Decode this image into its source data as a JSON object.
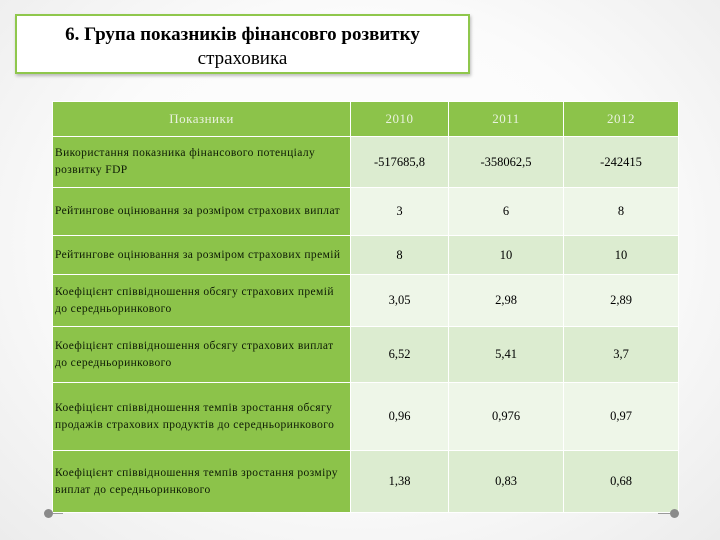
{
  "title": {
    "line1": "6. Група показників фінансовго розвитку",
    "line2": "страховика"
  },
  "table": {
    "headers": [
      "Показники",
      "2010",
      "2011",
      "2012"
    ],
    "rows": [
      {
        "label": "Використання показника фінансового потенціалу розвитку FDP",
        "values": [
          "-517685,8",
          "-358062,5",
          "-242415"
        ]
      },
      {
        "label": "Рейтингове оцінювання за розміром страхових виплат",
        "values": [
          "3",
          "6",
          "8"
        ]
      },
      {
        "label": "Рейтингове оцінювання за розміром страхових премій",
        "values": [
          "8",
          "10",
          "10"
        ]
      },
      {
        "label": "Коефіцієнт співвідношення обсягу страхових премій до середньоринкового",
        "values": [
          "3,05",
          "2,98",
          "2,89"
        ]
      },
      {
        "label": "Коефіцієнт співвідношення обсягу страхових виплат до середньоринкового",
        "values": [
          "6,52",
          "5,41",
          "3,7"
        ]
      },
      {
        "label": "Коефіцієнт співвідношення темпів зростання обсягу продажів страхових продуктів до середньоринкового",
        "values": [
          "0,96",
          "0,976",
          "0,97"
        ]
      },
      {
        "label": "Коефіцієнт співвідношення темпів зростання розміру виплат до середньоринкового",
        "values": [
          "1,38",
          "0,83",
          "0,68"
        ]
      }
    ]
  },
  "colors": {
    "accent_green": "#8cc34a",
    "cell_light": "#dcecd0",
    "cell_lighter": "#eef6e8",
    "title_border": "#8fc74c"
  }
}
